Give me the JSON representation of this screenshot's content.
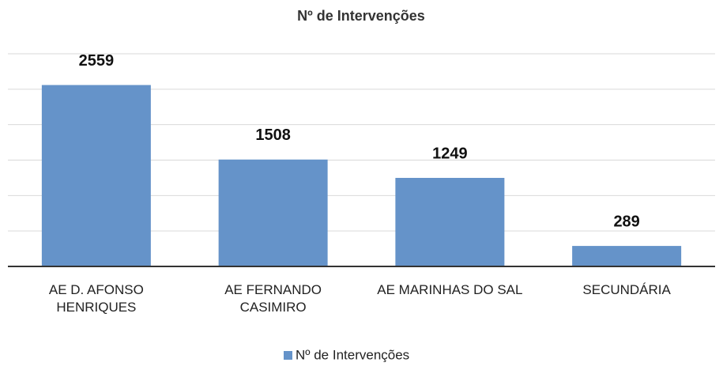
{
  "chart_data": {
    "type": "bar",
    "title": "Nº de Intervenções",
    "categories": [
      "AE D. AFONSO HENRIQUES",
      "AE FERNANDO CASIMIRO",
      "AE MARINHAS DO SAL",
      "SECUNDÁRIA"
    ],
    "series": [
      {
        "name": "Nº de Intervenções",
        "color": "#6593c9",
        "values": [
          2559,
          1508,
          1249,
          289
        ]
      }
    ],
    "ylim": [
      0,
      3000
    ],
    "yticks": [
      0,
      500,
      1000,
      1500,
      2000,
      2500,
      3000
    ],
    "grid": true,
    "legend": "bottom"
  }
}
